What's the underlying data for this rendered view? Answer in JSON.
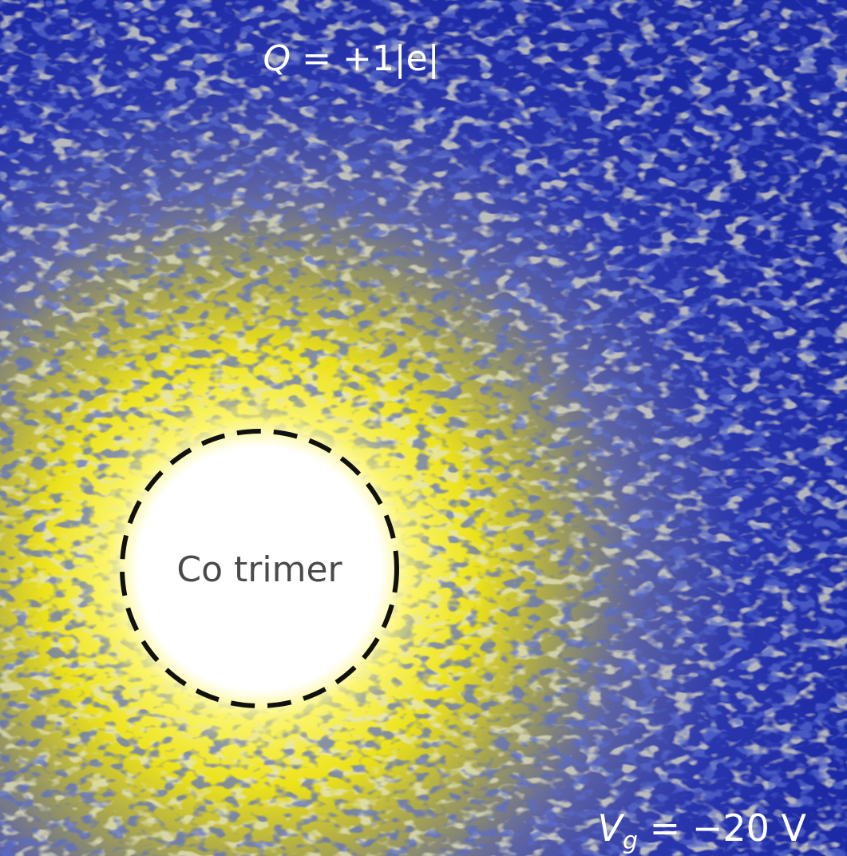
{
  "image": {
    "charge_label": {
      "symbol": "Q",
      "rest": " = +1|e|"
    },
    "center_label": "Co trimer",
    "gate_label": {
      "symbol": "V",
      "subscript": "g",
      "rest": " = −20 V"
    }
  }
}
